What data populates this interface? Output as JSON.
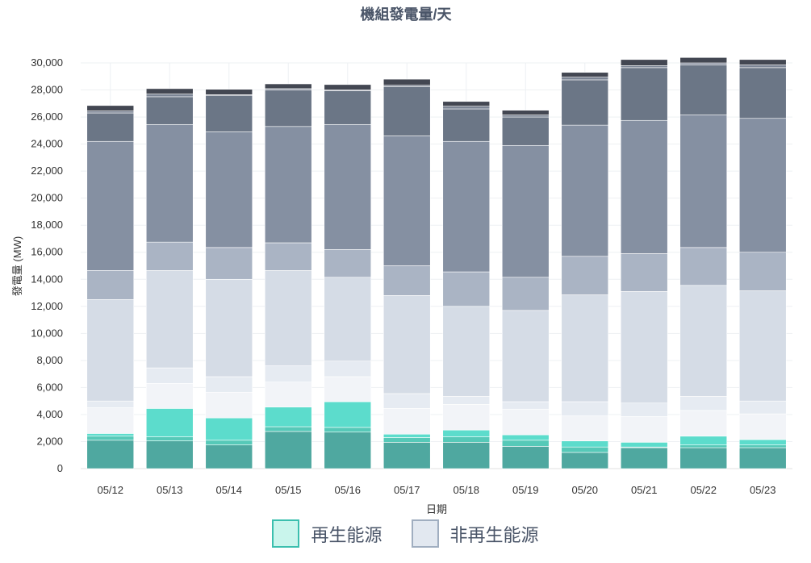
{
  "chart_data": {
    "type": "bar",
    "stacked": true,
    "title": "機組發電量/天",
    "xlabel": "日期",
    "ylabel": "發電量 (MW)",
    "ylim": [
      0,
      30000
    ],
    "yticks": [
      0,
      2000,
      4000,
      6000,
      8000,
      10000,
      12000,
      14000,
      16000,
      18000,
      20000,
      22000,
      24000,
      26000,
      28000,
      30000
    ],
    "grid": true,
    "legend_placement": "bottom",
    "categories": [
      "05/12",
      "05/13",
      "05/14",
      "05/15",
      "05/16",
      "05/17",
      "05/18",
      "05/19",
      "05/20",
      "05/21",
      "05/22",
      "05/23"
    ],
    "series": [
      {
        "group": "renewable",
        "color": "#4fa8a0",
        "values": [
          2100,
          2050,
          1750,
          2750,
          2700,
          1950,
          1950,
          1650,
          1200,
          1550,
          1550,
          1550
        ]
      },
      {
        "group": "renewable",
        "color": "#56c9b8",
        "values": [
          300,
          300,
          350,
          350,
          350,
          350,
          400,
          450,
          400,
          50,
          200,
          200
        ]
      },
      {
        "group": "renewable",
        "color": "#5cdccc",
        "values": [
          200,
          2100,
          1650,
          1450,
          1900,
          250,
          500,
          400,
          450,
          350,
          650,
          400
        ]
      },
      {
        "group": "non-renewable",
        "color": "#f2f4f8",
        "values": [
          1900,
          1850,
          1900,
          1850,
          1850,
          1900,
          1900,
          1900,
          1850,
          1900,
          1900,
          1900
        ]
      },
      {
        "group": "non-renewable",
        "color": "#e6ebf2",
        "values": [
          500,
          1150,
          1150,
          1200,
          1150,
          1100,
          600,
          550,
          1050,
          1000,
          1050,
          950
        ]
      },
      {
        "group": "non-renewable",
        "color": "#d5dce6",
        "values": [
          7500,
          7200,
          7200,
          7050,
          6200,
          7250,
          6650,
          6750,
          7900,
          8250,
          8200,
          8150
        ]
      },
      {
        "group": "non-renewable",
        "color": "#aab4c4",
        "values": [
          2150,
          2100,
          2350,
          2050,
          2050,
          2200,
          2550,
          2450,
          2850,
          2800,
          2800,
          2850
        ]
      },
      {
        "group": "non-renewable",
        "color": "#8590a2",
        "values": [
          9550,
          8700,
          8550,
          8600,
          9250,
          9600,
          9650,
          9750,
          9700,
          9850,
          9800,
          9900
        ]
      },
      {
        "group": "non-renewable",
        "color": "#6b7686",
        "values": [
          2100,
          2050,
          2700,
          2700,
          2500,
          3650,
          2400,
          2100,
          3350,
          3900,
          3700,
          3750
        ]
      },
      {
        "group": "non-renewable",
        "color": "#7c8595",
        "values": [
          150,
          200,
          50,
          100,
          50,
          100,
          200,
          150,
          200,
          150,
          150,
          200
        ]
      },
      {
        "group": "non-renewable",
        "color": "#434752",
        "values": [
          400,
          400,
          400,
          350,
          400,
          450,
          350,
          350,
          350,
          450,
          400,
          400
        ]
      }
    ],
    "legend": [
      {
        "label": "再生能源",
        "fill": "#c9f5ec",
        "border": "#3bbfae"
      },
      {
        "label": "非再生能源",
        "fill": "#e2e8f0",
        "border": "#a0aec0"
      }
    ]
  }
}
